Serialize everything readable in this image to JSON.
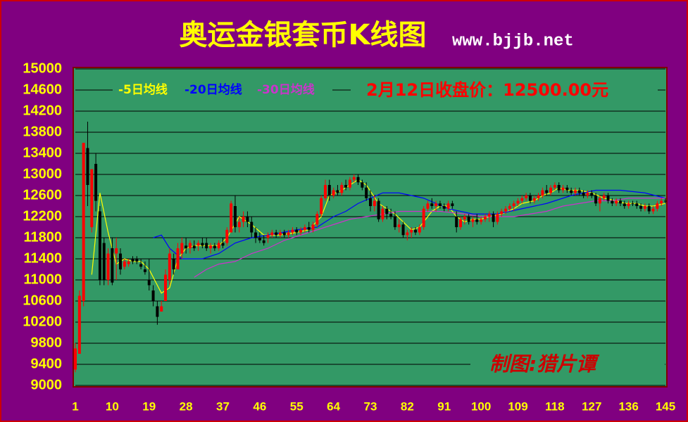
{
  "chart_data": {
    "type": "candlestick",
    "title": "奥运金银套币K线图",
    "subtitle": "www.bjjb.net",
    "annotation": "2月12日收盘价：12500.00元",
    "credit": "制图:猎片谭",
    "xlim": [
      1,
      145
    ],
    "xticks": [
      1,
      10,
      19,
      28,
      37,
      46,
      55,
      64,
      73,
      82,
      91,
      100,
      109,
      118,
      127,
      136,
      145
    ],
    "ylim": [
      9000,
      15000
    ],
    "yticks": [
      15000,
      14600,
      14200,
      13800,
      13400,
      13000,
      12600,
      12200,
      11800,
      11400,
      11000,
      10600,
      10200,
      9800,
      9400,
      9000
    ],
    "grid": true,
    "up_color": "#ff0000",
    "down_color": "#000000",
    "open": [
      9300,
      9600,
      10600,
      13500,
      12000,
      13200,
      12300,
      11700,
      11000,
      11600,
      11500,
      11500,
      11250,
      11300,
      11400,
      11400,
      11300,
      11200,
      11000,
      10800,
      10500,
      10400,
      10600,
      11000,
      11400,
      11200,
      11500,
      11650,
      11600,
      11650,
      11650,
      11700,
      11700,
      11600,
      11650,
      11600,
      11700,
      11700,
      11900,
      12400,
      12000,
      12100,
      12200,
      12100,
      11900,
      11800,
      11750,
      11800,
      11850,
      11900,
      11850,
      11900,
      11850,
      11900,
      11950,
      11900,
      11950,
      12000,
      11950,
      12050,
      12250,
      12550,
      12800,
      12600,
      12700,
      12650,
      12800,
      12750,
      12900,
      12950,
      12850,
      12750,
      12550,
      12400,
      12500,
      12150,
      12350,
      12250,
      12200,
      12000,
      12050,
      11850,
      11900,
      11950,
      11900,
      12000,
      12350,
      12450,
      12400,
      12450,
      12400,
      12350,
      12450,
      12200,
      12000,
      12150,
      12200,
      12100,
      12150,
      12100,
      12150,
      12200,
      12250,
      12100,
      12250,
      12300,
      12350,
      12400,
      12450,
      12500,
      12550,
      12600,
      12500,
      12550,
      12600,
      12700,
      12650,
      12750,
      12800,
      12700,
      12750,
      12700,
      12650,
      12700,
      12650,
      12600,
      12650,
      12600,
      12450,
      12550,
      12600,
      12500,
      12450,
      12500,
      12450,
      12400,
      12450,
      12450,
      12400,
      12350,
      12400,
      12300,
      12350,
      12450,
      12500
    ],
    "high": [
      9800,
      10800,
      13600,
      14000,
      13100,
      13400,
      12400,
      11800,
      11600,
      11800,
      11800,
      11600,
      11400,
      11400,
      11450,
      11450,
      11400,
      11350,
      11400,
      10900,
      10600,
      10600,
      11200,
      11600,
      11500,
      11700,
      11800,
      11800,
      11750,
      11750,
      11750,
      11800,
      11800,
      11700,
      11700,
      11750,
      11800,
      12000,
      12500,
      12600,
      12200,
      12300,
      12300,
      12200,
      12000,
      11900,
      11850,
      11900,
      11950,
      11950,
      11950,
      11950,
      11950,
      12000,
      12000,
      12000,
      12050,
      12100,
      12100,
      12300,
      12600,
      12900,
      12900,
      12750,
      12800,
      12850,
      12900,
      12950,
      13000,
      13000,
      12900,
      12850,
      12700,
      12600,
      12550,
      12400,
      12400,
      12350,
      12300,
      12150,
      12100,
      11950,
      12000,
      12000,
      12050,
      12400,
      12500,
      12550,
      12500,
      12500,
      12450,
      12500,
      12500,
      12300,
      12200,
      12250,
      12250,
      12200,
      12250,
      12200,
      12250,
      12300,
      12300,
      12300,
      12350,
      12400,
      12450,
      12500,
      12550,
      12600,
      12650,
      12650,
      12600,
      12650,
      12750,
      12800,
      12800,
      12850,
      12850,
      12800,
      12800,
      12750,
      12750,
      12750,
      12700,
      12700,
      12700,
      12650,
      12600,
      12650,
      12650,
      12550,
      12550,
      12550,
      12500,
      12500,
      12500,
      12500,
      12450,
      12450,
      12450,
      12400,
      12500,
      12550,
      12550
    ],
    "low": [
      9250,
      9600,
      10500,
      12400,
      11900,
      12300,
      10900,
      10900,
      10900,
      10900,
      11000,
      11100,
      11200,
      11250,
      11300,
      11300,
      11200,
      11100,
      10800,
      10500,
      10150,
      10400,
      10600,
      10900,
      11100,
      11200,
      11400,
      11500,
      11500,
      11550,
      11550,
      11600,
      11550,
      11500,
      11550,
      11550,
      11600,
      11650,
      11900,
      11900,
      11900,
      12000,
      12000,
      11800,
      11700,
      11700,
      11650,
      11700,
      11800,
      11800,
      11800,
      11800,
      11800,
      11850,
      11850,
      11850,
      11900,
      11900,
      11900,
      12000,
      12200,
      12500,
      12500,
      12550,
      12600,
      12600,
      12700,
      12700,
      12850,
      12800,
      12700,
      12500,
      12300,
      12300,
      12100,
      12100,
      12150,
      12150,
      11950,
      11900,
      11800,
      11750,
      11800,
      11850,
      11850,
      11950,
      12300,
      12350,
      12300,
      12350,
      12300,
      12300,
      12350,
      11900,
      11950,
      12050,
      12050,
      12000,
      12050,
      12050,
      12100,
      12100,
      12000,
      12050,
      12200,
      12250,
      12300,
      12300,
      12400,
      12450,
      12500,
      12450,
      12450,
      12500,
      12550,
      12600,
      12600,
      12700,
      12650,
      12650,
      12650,
      12600,
      12600,
      12600,
      12550,
      12550,
      12550,
      12400,
      12300,
      12500,
      12450,
      12400,
      12400,
      12400,
      12350,
      12350,
      12400,
      12350,
      12300,
      12300,
      12250,
      12250,
      12300,
      12400,
      12450
    ],
    "close": [
      9700,
      10700,
      13600,
      12800,
      13100,
      12500,
      11000,
      11000,
      11500,
      10950,
      11600,
      11200,
      11350,
      11350,
      11350,
      11350,
      11250,
      11150,
      10900,
      10600,
      10300,
      10500,
      11100,
      11500,
      11200,
      11600,
      11700,
      11600,
      11700,
      11600,
      11700,
      11650,
      11600,
      11650,
      11600,
      11700,
      11650,
      11950,
      12450,
      12000,
      12100,
      12200,
      12100,
      11900,
      11800,
      11750,
      11700,
      11850,
      11900,
      11850,
      11900,
      11850,
      11900,
      11950,
      11900,
      11950,
      12000,
      11950,
      12050,
      12250,
      12550,
      12800,
      12600,
      12700,
      12650,
      12800,
      12750,
      12900,
      12950,
      12850,
      12750,
      12550,
      12400,
      12500,
      12150,
      12350,
      12250,
      12200,
      12000,
      12050,
      11850,
      11900,
      11950,
      11900,
      12000,
      12350,
      12450,
      12400,
      12450,
      12400,
      12350,
      12450,
      12400,
      12000,
      12150,
      12200,
      12100,
      12150,
      12100,
      12150,
      12200,
      12250,
      12100,
      12250,
      12300,
      12350,
      12400,
      12450,
      12500,
      12550,
      12600,
      12500,
      12550,
      12600,
      12700,
      12650,
      12750,
      12800,
      12700,
      12750,
      12700,
      12650,
      12700,
      12650,
      12600,
      12650,
      12600,
      12450,
      12550,
      12600,
      12500,
      12450,
      12500,
      12450,
      12400,
      12450,
      12450,
      12400,
      12350,
      12400,
      12300,
      12350,
      12450,
      12500,
      12500
    ],
    "series": [
      {
        "name": "-5日均线",
        "color": "#ffff00",
        "x": [
          5,
          7,
          9,
          11,
          13,
          15,
          17,
          19,
          22,
          24,
          26,
          28,
          30,
          33,
          36,
          38,
          41,
          44,
          47,
          51,
          55,
          58,
          61,
          63,
          66,
          68,
          70,
          72,
          75,
          77,
          79,
          81,
          83,
          85,
          88,
          90,
          92,
          94,
          96,
          98,
          100,
          102,
          105,
          108,
          110,
          113,
          115,
          117,
          119,
          121,
          124,
          127,
          130,
          133,
          135,
          138,
          140,
          142,
          145
        ],
        "values": [
          11100,
          12650,
          11900,
          11300,
          11400,
          11350,
          11350,
          11200,
          10750,
          10850,
          11400,
          11600,
          11650,
          11650,
          11650,
          11800,
          12200,
          12050,
          11850,
          11850,
          11900,
          11950,
          12200,
          12600,
          12700,
          12800,
          12900,
          12800,
          12450,
          12350,
          12250,
          12100,
          11950,
          12000,
          12300,
          12400,
          12400,
          12200,
          12100,
          12150,
          12150,
          12200,
          12250,
          12350,
          12450,
          12500,
          12600,
          12650,
          12750,
          12700,
          12700,
          12650,
          12550,
          12500,
          12450,
          12450,
          12400,
          12400,
          12450
        ]
      },
      {
        "name": "-20日均线",
        "color": "#0000ff",
        "x": [
          20,
          22,
          24,
          27,
          32,
          36,
          40,
          44,
          48,
          55,
          60,
          64,
          67,
          70,
          73,
          76,
          80,
          83,
          86,
          89,
          92,
          95,
          98,
          104,
          110,
          116,
          122,
          128,
          134,
          140,
          145
        ],
        "values": [
          11800,
          11850,
          11600,
          11400,
          11400,
          11500,
          11700,
          11800,
          11850,
          11950,
          12000,
          12200,
          12300,
          12450,
          12550,
          12650,
          12650,
          12600,
          12550,
          12450,
          12350,
          12300,
          12250,
          12250,
          12350,
          12450,
          12600,
          12700,
          12700,
          12650,
          12550
        ]
      },
      {
        "name": "-30日均线",
        "color": "#cc33cc",
        "x": [
          30,
          33,
          36,
          40,
          44,
          48,
          52,
          56,
          60,
          64,
          68,
          72,
          76,
          80,
          84,
          90,
          96,
          100,
          104,
          108,
          112,
          116,
          120,
          124,
          128,
          132,
          136,
          140,
          145
        ],
        "values": [
          11050,
          11200,
          11300,
          11350,
          11500,
          11600,
          11750,
          11850,
          11950,
          12050,
          12150,
          12200,
          12250,
          12300,
          12300,
          12300,
          12250,
          12200,
          12200,
          12200,
          12250,
          12300,
          12400,
          12450,
          12500,
          12500,
          12550,
          12550,
          12550
        ]
      }
    ]
  }
}
